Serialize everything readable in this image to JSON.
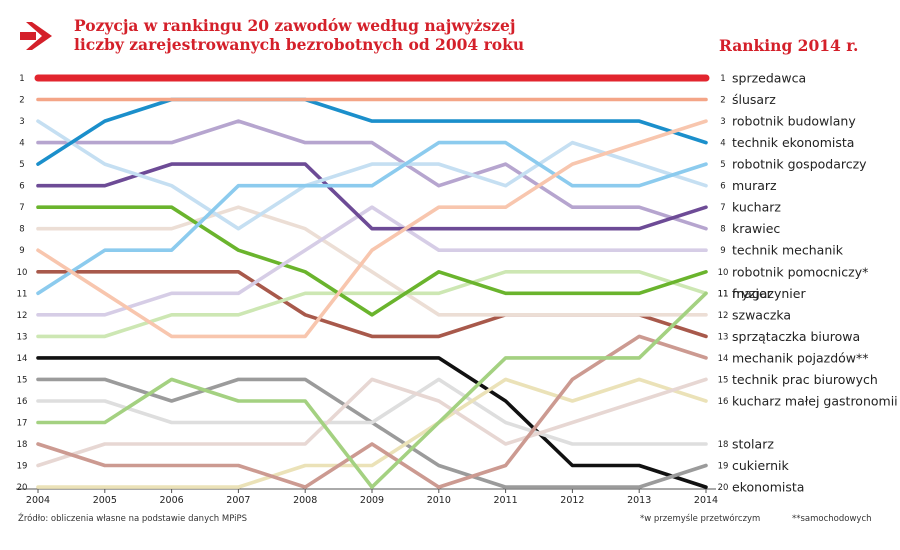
{
  "header": {
    "title_line1": "Pozycja w rankingu 20 zawodów według najwyższej",
    "title_line2": "liczby zarejestrowanych bezrobotnych od 2004 roku",
    "ranking_title": "Ranking 2014 r."
  },
  "footer": {
    "source": "Źródło: obliczenia własne na podstawie danych MPiPS",
    "footnote1": "*w przemyśle przetwórczym",
    "footnote2": "**samochodowych"
  },
  "colors": {
    "accent": "#d4202a"
  },
  "icons": {
    "header_arrow": "arrow-right-icon"
  },
  "chart_data": {
    "type": "line",
    "title": "Pozycja w rankingu 20 zawodów według najwyższej liczby zarejestrowanych bezrobotnych od 2004 roku",
    "xlabel": "",
    "ylabel": "",
    "x": [
      "2004",
      "2005",
      "2006",
      "2007",
      "2008",
      "2009",
      "2010",
      "2011",
      "2012",
      "2013",
      "2014"
    ],
    "ylim": [
      20,
      1
    ],
    "y_ticks": [
      1,
      2,
      3,
      4,
      5,
      6,
      7,
      8,
      9,
      10,
      11,
      12,
      13,
      14,
      15,
      16,
      17,
      18,
      19,
      20
    ],
    "grid": false,
    "legend": "right",
    "series": [
      {
        "name": "sprzedawca",
        "color": "#e2252e",
        "values": [
          1,
          1,
          1,
          1,
          1,
          1,
          1,
          1,
          1,
          1,
          1
        ]
      },
      {
        "name": "ślusarz",
        "color": "#f4a587",
        "values": [
          2,
          2,
          2,
          2,
          2,
          2,
          2,
          2,
          2,
          2,
          2
        ]
      },
      {
        "name": "robotnik budowlany",
        "color": "#f8c6ae",
        "values": [
          9,
          11,
          13,
          13,
          13,
          9,
          7,
          7,
          5,
          4,
          3
        ]
      },
      {
        "name": "technik ekonomista",
        "color": "#1b8fcb",
        "values": [
          5,
          3,
          2,
          2,
          2,
          3,
          3,
          3,
          3,
          3,
          4
        ]
      },
      {
        "name": "robotnik gospodarczy",
        "color": "#8ccbee",
        "values": [
          11,
          9,
          9,
          6,
          6,
          6,
          4,
          4,
          6,
          6,
          5
        ]
      },
      {
        "name": "murarz",
        "color": "#c5dff2",
        "values": [
          3,
          5,
          6,
          8,
          6,
          5,
          5,
          6,
          4,
          5,
          6
        ]
      },
      {
        "name": "kucharz",
        "color": "#6d4b96",
        "values": [
          6,
          6,
          5,
          5,
          5,
          8,
          8,
          8,
          8,
          8,
          7
        ]
      },
      {
        "name": "krawiec",
        "color": "#b6a5cf",
        "values": [
          4,
          4,
          4,
          3,
          4,
          4,
          6,
          5,
          7,
          7,
          8
        ]
      },
      {
        "name": "technik mechanik",
        "color": "#d6cde6",
        "values": [
          12,
          12,
          11,
          11,
          9,
          7,
          9,
          9,
          9,
          9,
          9
        ]
      },
      {
        "name": "robotnik pomocniczy*",
        "color": "#6ab42d",
        "values": [
          7,
          7,
          7,
          9,
          10,
          12,
          10,
          11,
          11,
          11,
          10
        ]
      },
      {
        "name": "fryzjer",
        "color": "#cde7b3",
        "values": [
          13,
          13,
          12,
          12,
          11,
          11,
          11,
          10,
          10,
          10,
          11
        ]
      },
      {
        "name": "szwaczka",
        "color": "#ecded5",
        "values": [
          8,
          8,
          8,
          7,
          8,
          10,
          12,
          12,
          12,
          12,
          12
        ]
      },
      {
        "name": "sprzątaczka biurowa",
        "color": "#a8594b",
        "values": [
          10,
          10,
          10,
          10,
          12,
          13,
          13,
          12,
          12,
          12,
          13
        ]
      },
      {
        "name": "mechanik pojazdów**",
        "color": "#cc9a91",
        "values": [
          18,
          19,
          19,
          19,
          20,
          18,
          20,
          19,
          15,
          13,
          14
        ]
      },
      {
        "name": "technik prac biurowych",
        "color": "#e7d7d3",
        "values": [
          19,
          18,
          18,
          18,
          18,
          15,
          16,
          18,
          17,
          16,
          15
        ]
      },
      {
        "name": "kucharz małej gastronomii",
        "color": "#ebe2b8",
        "values": [
          20,
          20,
          20,
          20,
          19,
          19,
          17,
          15,
          16,
          15,
          16
        ]
      },
      {
        "name": "magazynier",
        "color": "#a4d181",
        "values": [
          17,
          17,
          15,
          16,
          16,
          20,
          17,
          14,
          14,
          14,
          11
        ]
      },
      {
        "name": "stolarz",
        "color": "#dedede",
        "values": [
          16,
          16,
          17,
          17,
          17,
          17,
          15,
          17,
          18,
          18,
          18
        ]
      },
      {
        "name": "cukiernik",
        "color": "#9b9b9b",
        "values": [
          15,
          15,
          16,
          15,
          15,
          17,
          19,
          20,
          20,
          20,
          19
        ]
      },
      {
        "name": "ekonomista",
        "color": "#111111",
        "values": [
          14,
          14,
          14,
          14,
          14,
          14,
          14,
          16,
          19,
          19,
          20
        ]
      }
    ]
  }
}
